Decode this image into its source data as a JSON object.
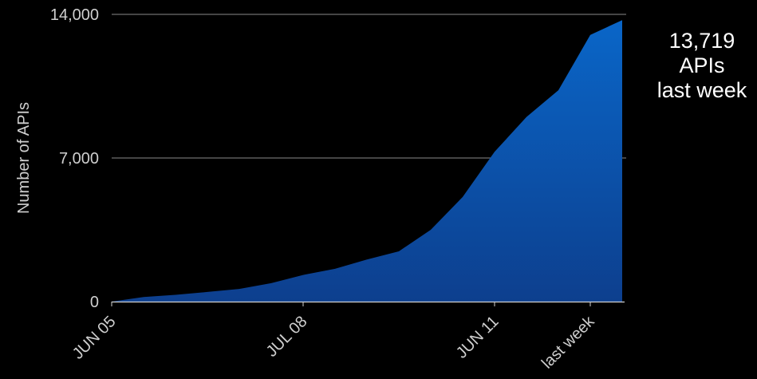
{
  "chart_data": {
    "type": "area",
    "title": "",
    "xlabel": "",
    "ylabel": "Number of APIs",
    "ylim": [
      0,
      14000
    ],
    "yticks": [
      0,
      7000,
      14000
    ],
    "ytick_labels": [
      "0",
      "7,000",
      "14,000"
    ],
    "grid": "horizontal",
    "x_ticks": [
      {
        "index": 0,
        "label": "JUN 05"
      },
      {
        "index": 6,
        "label": "JUL 08"
      },
      {
        "index": 12,
        "label": "JUN 11"
      },
      {
        "index": 15,
        "label": "last week"
      }
    ],
    "series": [
      {
        "values": [
          0,
          220,
          330,
          470,
          620,
          900,
          1300,
          1600,
          2050,
          2450,
          3500,
          5100,
          7300,
          9000,
          10300,
          13000,
          13719
        ]
      }
    ],
    "fill_color_top": "#0a66c8",
    "fill_color_bottom": "#0d3f8e"
  },
  "callout": {
    "value": "13,719",
    "unit": "APIs",
    "period": "last week"
  }
}
